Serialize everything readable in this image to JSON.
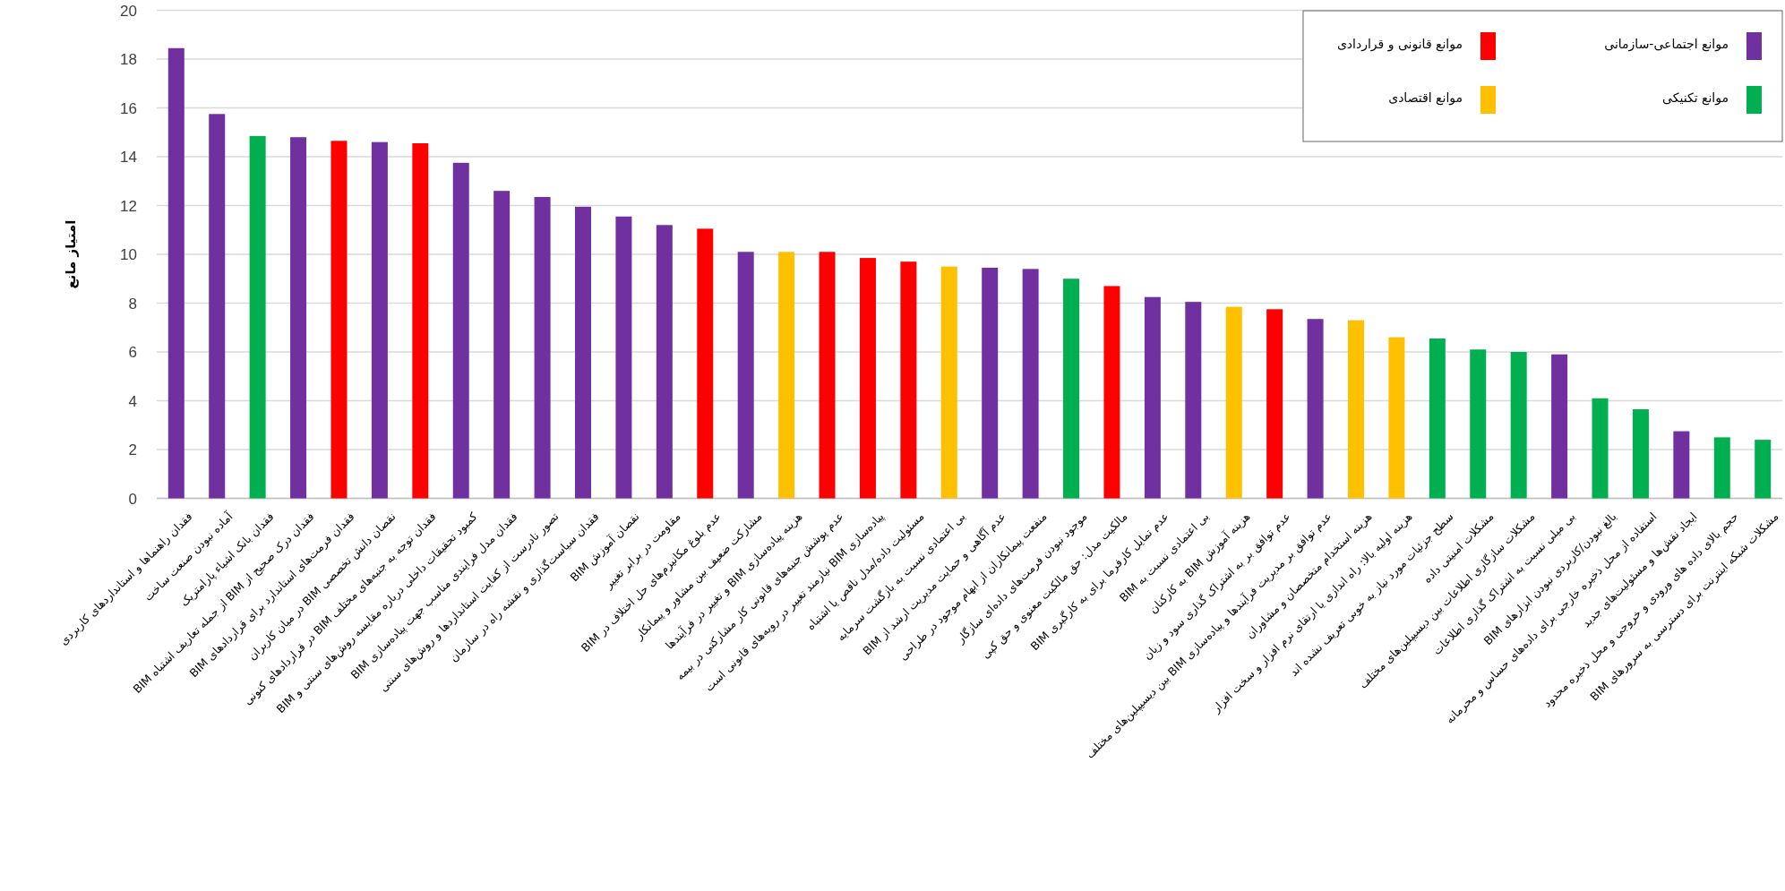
{
  "chart_data": {
    "type": "bar",
    "ylabel": "امتیاز مانع",
    "categories": [
      "فقدان راهنماها و استانداردهای کاربردی",
      "آماده نبودن صنعت ساخت",
      "فقدان بانک اشیاء پارامتریک",
      "فقدان درک صحیح از BIM از جمله تعاریف اشتباه BIM",
      "فقدان فرمت‌های استاندارد برای قراردادهای BIM",
      "نقصان دانش تخصصی BIM در میان کاربران",
      "فقدان توجه به جنبه‌های مختلف BIM در قراردادهای کنونی",
      "کمبود تحقیقات داخلی درباره مقایسه روش‌های سنتی و BIM",
      "فقدان مدل فرایندی مناسب جهت پیاده‌سازی BIM",
      "تصور نادرست از کفایت استانداردها و روش‌های سنتی",
      "فقدان سیاست‌گذاری و نقشه راه در سازمان",
      "نقصان آموزش BIM",
      "مقاومت در برابر تغییر",
      "عدم بلوغ مکانیزم‌های حل اختلاف در BIM",
      "مشارکت ضعیف بین مشاور و پیمانکار",
      "هزینه پیاده‌سازی BIM و تغییر در فرآیندها",
      "عدم پوشش جنبه‌های قانونی کار مشارکتی در بیمه",
      "پیاده‌سازی BIM نیازمند تغییر در رویه‌های قانونی است",
      "مسئولیت داده/مدل ناقص یا اشتباه",
      "بی اعتمادی نسبت به بازگشت سرمایه",
      "عدم آگاهی و حمایت مدیریت ارشد از BIM",
      "منفعت پیمانکاران از ابهام موجود در طراحی",
      "موجود نبودن فرمت‌های داده‌ای سازگار",
      "مالکیت مدل: حق مالکیت معنوی و حق کپی",
      "عدم تمایل کارفرما برای به کارگیری BIM",
      "بی اعتمادی نسبت به BIM",
      "هزینه آموزش BIM به کارکنان",
      "عدم توافق بر به اشتراک گذاری سود و زیان",
      "عدم توافق بر مدیریت فرآیندها و پیاده‌سازی BIM بین دیسیپلین‌های مختلف",
      "هزینه استخدام متخصصان و مشاوران",
      "هزینه اولیه بالا: راه اندازی یا ارتقای نرم افزار و سخت افزار",
      "سطح جزئیات مورد نیاز به خوبی تعریف نشده اند",
      "مشکلات امنیتی داده",
      "مشکلات سازگاری اطلاعات بین دیسیپلین‌های مختلف",
      "بی میلی نسبت به اشتراک گذاری اطلاعات",
      "بالغ نبودن/کاربردی نبودن ابزارهای BIM",
      "استفاده از محل ذخیره خارجی برای داده‌های حساس و محرمانه",
      "ایجاد نقش‌ها و مسئولیت‌های جدید",
      "حجم بالای داده های ورودی و خروجی و محل ذخیره محدود",
      "مشکلات شبکه اینترنت برای دسترسی به سرورهای BIM"
    ],
    "series": [
      {
        "name": "موانع اجتماعی-سازمانی",
        "color": "#7030a0",
        "values": [
          18.45,
          15.75,
          null,
          14.8,
          null,
          14.6,
          null,
          13.75,
          12.6,
          12.35,
          11.95,
          11.55,
          11.2,
          null,
          10.1,
          null,
          null,
          null,
          null,
          null,
          9.45,
          9.4,
          null,
          null,
          8.25,
          8.05,
          null,
          null,
          7.35,
          null,
          null,
          null,
          null,
          null,
          5.9,
          null,
          null,
          2.75,
          null,
          null
        ]
      },
      {
        "name": "موانع قانونی و قراردادی",
        "color": "#ff0000",
        "values": [
          null,
          null,
          null,
          null,
          14.65,
          null,
          14.55,
          null,
          null,
          null,
          null,
          null,
          null,
          11.05,
          null,
          null,
          10.1,
          9.85,
          9.7,
          null,
          null,
          null,
          null,
          8.7,
          null,
          null,
          null,
          7.75,
          null,
          null,
          null,
          null,
          null,
          null,
          null,
          null,
          null,
          null,
          null,
          null
        ]
      },
      {
        "name": "موانع تکنیکی",
        "color": "#00b050",
        "values": [
          null,
          null,
          14.85,
          null,
          null,
          null,
          null,
          null,
          null,
          null,
          null,
          null,
          null,
          null,
          null,
          null,
          null,
          null,
          null,
          null,
          null,
          null,
          9.0,
          null,
          null,
          null,
          null,
          null,
          null,
          null,
          null,
          6.55,
          6.1,
          6.0,
          null,
          4.1,
          3.65,
          null,
          2.5,
          2.4
        ]
      },
      {
        "name": "موانع اقتصادی",
        "color": "#ffc000",
        "values": [
          null,
          null,
          null,
          null,
          null,
          null,
          null,
          null,
          null,
          null,
          null,
          null,
          null,
          null,
          null,
          10.1,
          null,
          null,
          null,
          9.5,
          null,
          null,
          null,
          null,
          null,
          null,
          7.85,
          null,
          null,
          7.3,
          6.6,
          null,
          null,
          null,
          null,
          null,
          null,
          null,
          null,
          null
        ]
      }
    ],
    "ylim": [
      0,
      20
    ],
    "yticks": [
      0,
      2,
      4,
      6,
      8,
      10,
      12,
      14,
      16,
      18,
      20
    ],
    "grid": "y",
    "legend": "top right"
  }
}
